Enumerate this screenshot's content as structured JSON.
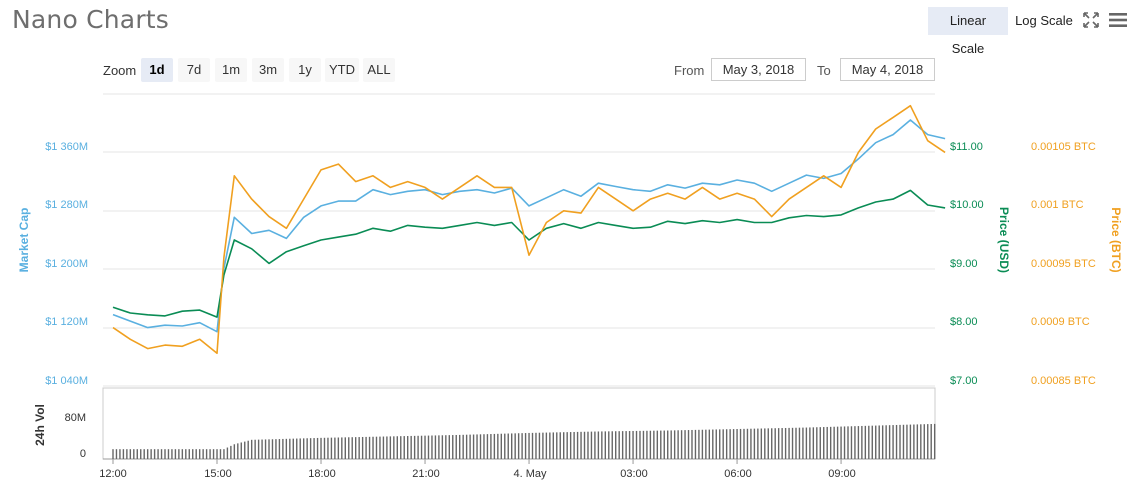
{
  "header": {
    "title": "Nano Charts",
    "linear_scale_label": "Linear Scale",
    "log_scale_label": "Log Scale",
    "fullscreen_icon": "fullscreen-icon",
    "menu_icon": "hamburger-menu-icon"
  },
  "controls": {
    "zoom_label": "Zoom",
    "zoom_buttons": [
      "1d",
      "7d",
      "1m",
      "3m",
      "1y",
      "YTD",
      "ALL"
    ],
    "active_zoom": "1d",
    "from_label": "From",
    "from_value": "May 3, 2018",
    "to_label": "To",
    "to_value": "May 4, 2018"
  },
  "colors": {
    "market_cap": "#5ab0e0",
    "price_usd": "#0a8c55",
    "price_btc": "#f0a020",
    "volume": "#666666",
    "active_button": "#e6ebf5"
  },
  "chart_data": {
    "type": "line",
    "scale": "linear",
    "axes": {
      "market_cap": {
        "title": "Market Cap",
        "ticks": [
          "$1 040M",
          "$1 120M",
          "$1 200M",
          "$1 280M",
          "$1 360M"
        ],
        "range": [
          1040,
          1400
        ]
      },
      "price_usd": {
        "title": "Price (USD)",
        "ticks": [
          "$7.00",
          "$8.00",
          "$9.00",
          "$10.00",
          "$11.00"
        ],
        "range": [
          7.0,
          12.0
        ]
      },
      "price_btc": {
        "title": "Price (BTC)",
        "ticks": [
          "0.00085 BTC",
          "0.0009 BTC",
          "0.00095 BTC",
          "0.001 BTC",
          "0.00105 BTC"
        ],
        "range": [
          0.00085,
          0.0011
        ]
      },
      "volume": {
        "title": "24h Vol",
        "ticks": [
          "0",
          "80M"
        ],
        "range": [
          0,
          120
        ]
      },
      "x": {
        "ticks": [
          "12:00",
          "15:00",
          "18:00",
          "21:00",
          "4. May",
          "03:00",
          "06:00",
          "09:00"
        ]
      }
    },
    "x_hours": [
      0,
      0.5,
      1,
      1.5,
      2,
      2.5,
      3,
      3.2,
      3.5,
      4,
      4.5,
      5,
      5.5,
      6,
      6.5,
      7,
      7.5,
      8,
      8.5,
      9,
      9.5,
      10,
      10.5,
      11,
      11.5,
      12,
      12.5,
      13,
      13.5,
      14,
      14.5,
      15,
      15.5,
      16,
      16.5,
      17,
      17.5,
      18,
      18.5,
      19,
      19.5,
      20,
      20.5,
      21,
      21.5,
      22,
      22.5,
      23,
      23.5,
      24
    ],
    "series": [
      {
        "name": "Market Cap",
        "axis": "market_cap",
        "values": [
          1128,
          1120,
          1112,
          1115,
          1114,
          1118,
          1107,
          1185,
          1248,
          1228,
          1232,
          1222,
          1248,
          1262,
          1268,
          1268,
          1282,
          1276,
          1280,
          1282,
          1276,
          1280,
          1282,
          1278,
          1284,
          1262,
          1272,
          1282,
          1274,
          1290,
          1286,
          1282,
          1280,
          1288,
          1284,
          1290,
          1288,
          1294,
          1290,
          1280,
          1290,
          1300,
          1296,
          1302,
          1320,
          1340,
          1350,
          1368,
          1350,
          1345
        ]
      },
      {
        "name": "Price (USD)",
        "axis": "price_usd",
        "values": [
          8.35,
          8.25,
          8.22,
          8.2,
          8.28,
          8.3,
          8.18,
          8.9,
          9.5,
          9.35,
          9.1,
          9.3,
          9.4,
          9.5,
          9.55,
          9.6,
          9.7,
          9.65,
          9.75,
          9.72,
          9.7,
          9.75,
          9.8,
          9.75,
          9.8,
          9.5,
          9.7,
          9.78,
          9.7,
          9.8,
          9.75,
          9.7,
          9.72,
          9.82,
          9.78,
          9.83,
          9.8,
          9.85,
          9.8,
          9.8,
          9.88,
          9.92,
          9.9,
          9.93,
          10.05,
          10.15,
          10.2,
          10.35,
          10.1,
          10.05
        ]
      },
      {
        "name": "Price (BTC)",
        "axis": "price_btc",
        "values": [
          0.0009,
          0.00089,
          0.000882,
          0.000885,
          0.000884,
          0.00089,
          0.000878,
          0.00096,
          0.00103,
          0.00101,
          0.000995,
          0.000985,
          0.00101,
          0.001035,
          0.00104,
          0.001025,
          0.00103,
          0.00102,
          0.001025,
          0.00102,
          0.00101,
          0.00102,
          0.00103,
          0.00102,
          0.00102,
          0.000962,
          0.00099,
          0.001,
          0.000998,
          0.00102,
          0.00101,
          0.001,
          0.00101,
          0.001015,
          0.00101,
          0.00102,
          0.00101,
          0.001015,
          0.00101,
          0.000995,
          0.00101,
          0.00102,
          0.00103,
          0.00102,
          0.00105,
          0.00107,
          0.00108,
          0.00109,
          0.00106,
          0.00105
        ]
      }
    ],
    "volume": {
      "x_hours": [
        0,
        3.2,
        3.5,
        4,
        5,
        6,
        8,
        10,
        12,
        14,
        16,
        18,
        20,
        22,
        24
      ],
      "values": [
        20,
        20,
        30,
        39,
        41,
        43,
        46,
        49,
        53,
        56,
        58,
        61,
        64,
        68,
        72
      ]
    }
  }
}
